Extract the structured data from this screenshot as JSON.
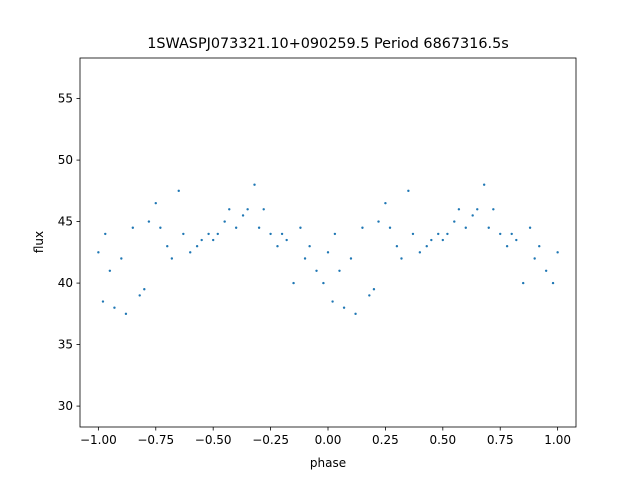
{
  "chart_data": {
    "type": "scatter",
    "title": "1SWASPJ073321.10+090259.5 Period 6867316.5s",
    "xlabel": "phase",
    "ylabel": "flux",
    "xlim": [
      -1.08,
      1.08
    ],
    "ylim": [
      28.3,
      58.3
    ],
    "xticks": [
      -1.0,
      -0.75,
      -0.5,
      -0.25,
      0.0,
      0.25,
      0.5,
      0.75,
      1.0
    ],
    "xtick_labels": [
      "−1.00",
      "−0.75",
      "−0.50",
      "−0.25",
      "0.00",
      "0.25",
      "0.50",
      "0.75",
      "1.00"
    ],
    "yticks": [
      30,
      35,
      40,
      45,
      50,
      55
    ],
    "ytick_labels": [
      "30",
      "35",
      "40",
      "45",
      "50",
      "55"
    ],
    "grid": false,
    "marker_color": "#1f77b4",
    "series": [
      {
        "points_sample": [
          [
            -1.0,
            42.5
          ],
          [
            -0.98,
            38.5
          ],
          [
            -0.97,
            44.0
          ],
          [
            -0.95,
            41.0
          ],
          [
            -0.93,
            38.0
          ],
          [
            -0.9,
            42.0
          ],
          [
            -0.88,
            37.5
          ],
          [
            -0.85,
            44.5
          ],
          [
            -0.82,
            39.0
          ],
          [
            -0.8,
            39.5
          ],
          [
            -0.78,
            45.0
          ],
          [
            -0.75,
            46.5
          ],
          [
            -0.73,
            44.5
          ],
          [
            -0.7,
            43.0
          ],
          [
            -0.68,
            42.0
          ],
          [
            -0.65,
            47.5
          ],
          [
            -0.63,
            44.0
          ],
          [
            -0.6,
            42.5
          ],
          [
            -0.57,
            43.0
          ],
          [
            -0.55,
            43.5
          ],
          [
            -0.52,
            44.0
          ],
          [
            -0.5,
            43.5
          ],
          [
            -0.48,
            44.0
          ],
          [
            -0.45,
            45.0
          ],
          [
            -0.43,
            46.0
          ],
          [
            -0.4,
            44.5
          ],
          [
            -0.37,
            45.5
          ],
          [
            -0.35,
            46.0
          ],
          [
            -0.32,
            48.0
          ],
          [
            -0.3,
            44.5
          ],
          [
            -0.28,
            46.0
          ],
          [
            -0.25,
            44.0
          ],
          [
            -0.22,
            43.0
          ],
          [
            -0.2,
            44.0
          ],
          [
            -0.18,
            43.5
          ],
          [
            -0.15,
            40.0
          ],
          [
            -0.12,
            44.5
          ],
          [
            -0.1,
            42.0
          ],
          [
            -0.08,
            43.0
          ],
          [
            -0.05,
            41.0
          ],
          [
            -0.02,
            40.0
          ],
          [
            0.0,
            42.5
          ],
          [
            0.02,
            38.5
          ],
          [
            0.03,
            44.0
          ],
          [
            0.05,
            41.0
          ],
          [
            0.07,
            38.0
          ],
          [
            0.1,
            42.0
          ],
          [
            0.12,
            37.5
          ],
          [
            0.15,
            44.5
          ],
          [
            0.18,
            39.0
          ],
          [
            0.2,
            39.5
          ],
          [
            0.22,
            45.0
          ],
          [
            0.25,
            46.5
          ],
          [
            0.27,
            44.5
          ],
          [
            0.3,
            43.0
          ],
          [
            0.32,
            42.0
          ],
          [
            0.35,
            47.5
          ],
          [
            0.37,
            44.0
          ],
          [
            0.4,
            42.5
          ],
          [
            0.43,
            43.0
          ],
          [
            0.45,
            43.5
          ],
          [
            0.48,
            44.0
          ],
          [
            0.5,
            43.5
          ],
          [
            0.52,
            44.0
          ],
          [
            0.55,
            45.0
          ],
          [
            0.57,
            46.0
          ],
          [
            0.6,
            44.5
          ],
          [
            0.63,
            45.5
          ],
          [
            0.65,
            46.0
          ],
          [
            0.68,
            48.0
          ],
          [
            0.7,
            44.5
          ],
          [
            0.72,
            46.0
          ],
          [
            0.75,
            44.0
          ],
          [
            0.78,
            43.0
          ],
          [
            0.8,
            44.0
          ],
          [
            0.82,
            43.5
          ],
          [
            0.85,
            40.0
          ],
          [
            0.88,
            44.5
          ],
          [
            0.9,
            42.0
          ],
          [
            0.92,
            43.0
          ],
          [
            0.95,
            41.0
          ],
          [
            0.98,
            40.0
          ],
          [
            1.0,
            42.5
          ]
        ]
      }
    ]
  }
}
